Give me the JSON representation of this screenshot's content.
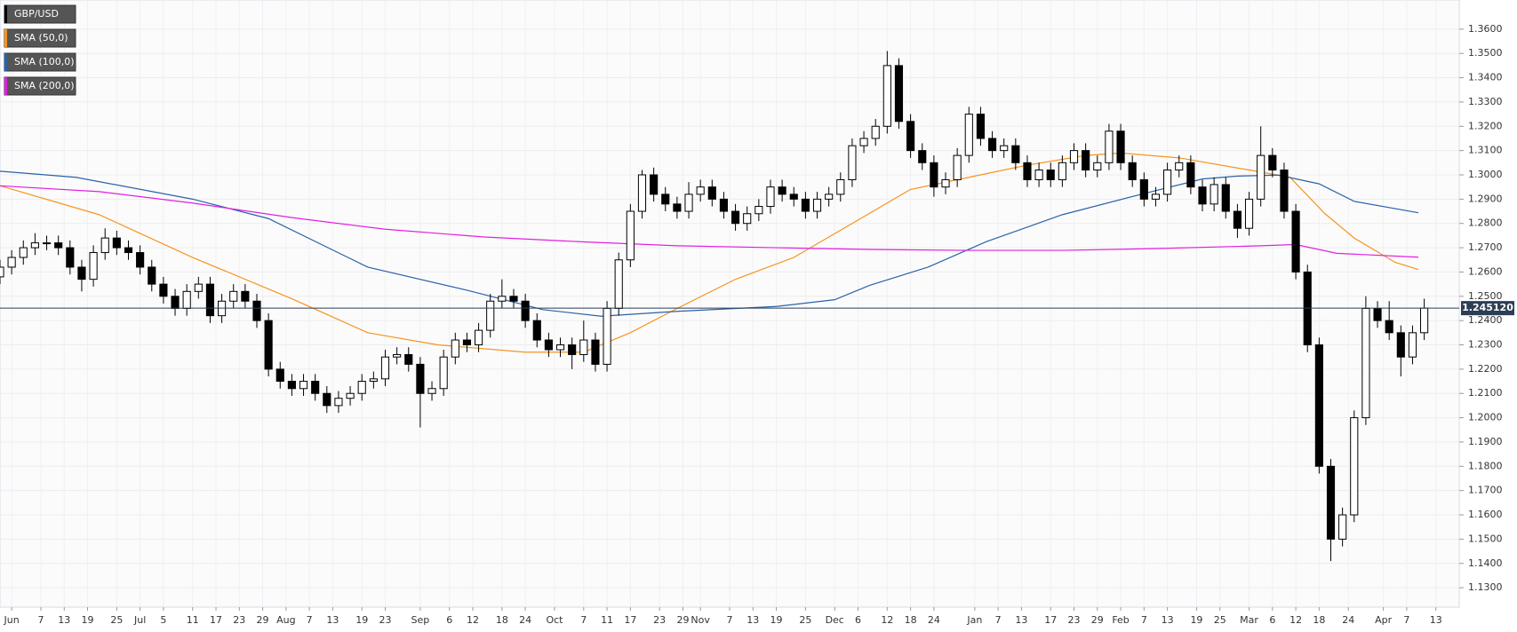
{
  "chart_data": {
    "type": "candlestick",
    "title": "GBP/USD",
    "up_color": "#ffffff",
    "down_color": "#000000",
    "xlim": [
      0,
      250
    ],
    "ylim": [
      1.122,
      1.372
    ],
    "grid": true,
    "xticks": [
      {
        "value": 2,
        "label": "Jun"
      },
      {
        "value": 7,
        "label": "7"
      },
      {
        "value": 11,
        "label": "13"
      },
      {
        "value": 15,
        "label": "19"
      },
      {
        "value": 20,
        "label": "25"
      },
      {
        "value": 24,
        "label": "Jul"
      },
      {
        "value": 28,
        "label": "5"
      },
      {
        "value": 33,
        "label": "11"
      },
      {
        "value": 37,
        "label": "17"
      },
      {
        "value": 41,
        "label": "23"
      },
      {
        "value": 45,
        "label": "29"
      },
      {
        "value": 49,
        "label": "Aug"
      },
      {
        "value": 53,
        "label": "7"
      },
      {
        "value": 57,
        "label": "13"
      },
      {
        "value": 62,
        "label": "19"
      },
      {
        "value": 66,
        "label": "23"
      },
      {
        "value": 72,
        "label": "Sep"
      },
      {
        "value": 77,
        "label": "6"
      },
      {
        "value": 81,
        "label": "12"
      },
      {
        "value": 86,
        "label": "18"
      },
      {
        "value": 90,
        "label": "24"
      },
      {
        "value": 95,
        "label": "Oct"
      },
      {
        "value": 100,
        "label": "7"
      },
      {
        "value": 104,
        "label": "11"
      },
      {
        "value": 108,
        "label": "17"
      },
      {
        "value": 113,
        "label": "23"
      },
      {
        "value": 117,
        "label": "29"
      },
      {
        "value": 120,
        "label": "Nov"
      },
      {
        "value": 125,
        "label": "7"
      },
      {
        "value": 129,
        "label": "13"
      },
      {
        "value": 133,
        "label": "19"
      },
      {
        "value": 138,
        "label": "25"
      },
      {
        "value": 143,
        "label": "Dec"
      },
      {
        "value": 147,
        "label": "6"
      },
      {
        "value": 152,
        "label": "12"
      },
      {
        "value": 156,
        "label": "18"
      },
      {
        "value": 160,
        "label": "24"
      },
      {
        "value": 167,
        "label": "Jan"
      },
      {
        "value": 171,
        "label": "7"
      },
      {
        "value": 175,
        "label": "13"
      },
      {
        "value": 180,
        "label": "17"
      },
      {
        "value": 184,
        "label": "23"
      },
      {
        "value": 188,
        "label": "29"
      },
      {
        "value": 192,
        "label": "Feb"
      },
      {
        "value": 196,
        "label": "7"
      },
      {
        "value": 200,
        "label": "13"
      },
      {
        "value": 205,
        "label": "19"
      },
      {
        "value": 209,
        "label": "25"
      },
      {
        "value": 214,
        "label": "Mar"
      },
      {
        "value": 218,
        "label": "6"
      },
      {
        "value": 222,
        "label": "12"
      },
      {
        "value": 226,
        "label": "18"
      },
      {
        "value": 231,
        "label": "24"
      },
      {
        "value": 237,
        "label": "Apr"
      },
      {
        "value": 241,
        "label": "7"
      },
      {
        "value": 246,
        "label": "13"
      }
    ],
    "yticks": [
      {
        "value": 1.13,
        "label": "1.1300"
      },
      {
        "value": 1.14,
        "label": "1.1400"
      },
      {
        "value": 1.15,
        "label": "1.1500"
      },
      {
        "value": 1.16,
        "label": "1.1600"
      },
      {
        "value": 1.17,
        "label": "1.1700"
      },
      {
        "value": 1.18,
        "label": "1.1800"
      },
      {
        "value": 1.19,
        "label": "1.1900"
      },
      {
        "value": 1.2,
        "label": "1.2000"
      },
      {
        "value": 1.21,
        "label": "1.2100"
      },
      {
        "value": 1.22,
        "label": "1.2200"
      },
      {
        "value": 1.23,
        "label": "1.2300"
      },
      {
        "value": 1.24,
        "label": "1.2400"
      },
      {
        "value": 1.25,
        "label": "1.2500"
      },
      {
        "value": 1.26,
        "label": "1.2600"
      },
      {
        "value": 1.27,
        "label": "1.2700"
      },
      {
        "value": 1.28,
        "label": "1.2800"
      },
      {
        "value": 1.29,
        "label": "1.2900"
      },
      {
        "value": 1.3,
        "label": "1.3000"
      },
      {
        "value": 1.31,
        "label": "1.3100"
      },
      {
        "value": 1.32,
        "label": "1.3200"
      },
      {
        "value": 1.33,
        "label": "1.3300"
      },
      {
        "value": 1.34,
        "label": "1.3400"
      },
      {
        "value": 1.35,
        "label": "1.3500"
      },
      {
        "value": 1.36,
        "label": "1.3600"
      }
    ],
    "last_price": {
      "value": 1.24512,
      "label": "1.245120"
    },
    "x": [
      0,
      2,
      4,
      6,
      8,
      10,
      12,
      14,
      16,
      18,
      20,
      22,
      24,
      26,
      28,
      30,
      32,
      34,
      36,
      38,
      40,
      42,
      44,
      46,
      48,
      50,
      52,
      54,
      56,
      58,
      60,
      62,
      64,
      66,
      68,
      70,
      72,
      74,
      76,
      78,
      80,
      82,
      84,
      86,
      88,
      90,
      92,
      94,
      96,
      98,
      100,
      102,
      104,
      106,
      108,
      110,
      112,
      114,
      116,
      118,
      120,
      122,
      124,
      126,
      128,
      130,
      132,
      134,
      136,
      138,
      140,
      142,
      144,
      146,
      148,
      150,
      152,
      154,
      156,
      158,
      160,
      162,
      164,
      166,
      168,
      170,
      172,
      174,
      176,
      178,
      180,
      182,
      184,
      186,
      188,
      190,
      192,
      194,
      196,
      198,
      200,
      202,
      204,
      206,
      208,
      210,
      212,
      214,
      216,
      218,
      220,
      222,
      224,
      226,
      228,
      230,
      232,
      234,
      236,
      238,
      240,
      242,
      244
    ],
    "candles": [
      [
        1.258,
        1.265,
        1.255,
        1.262
      ],
      [
        1.262,
        1.269,
        1.259,
        1.266
      ],
      [
        1.266,
        1.273,
        1.263,
        1.27
      ],
      [
        1.27,
        1.276,
        1.267,
        1.272
      ],
      [
        1.272,
        1.275,
        1.269,
        1.272
      ],
      [
        1.272,
        1.275,
        1.267,
        1.27
      ],
      [
        1.27,
        1.273,
        1.259,
        1.262
      ],
      [
        1.262,
        1.265,
        1.252,
        1.257
      ],
      [
        1.257,
        1.271,
        1.254,
        1.268
      ],
      [
        1.268,
        1.278,
        1.265,
        1.274
      ],
      [
        1.274,
        1.277,
        1.267,
        1.27
      ],
      [
        1.27,
        1.273,
        1.265,
        1.268
      ],
      [
        1.268,
        1.271,
        1.259,
        1.262
      ],
      [
        1.262,
        1.265,
        1.252,
        1.255
      ],
      [
        1.255,
        1.258,
        1.247,
        1.25
      ],
      [
        1.25,
        1.253,
        1.242,
        1.245
      ],
      [
        1.245,
        1.255,
        1.242,
        1.252
      ],
      [
        1.252,
        1.258,
        1.249,
        1.255
      ],
      [
        1.255,
        1.258,
        1.239,
        1.242
      ],
      [
        1.242,
        1.251,
        1.239,
        1.248
      ],
      [
        1.248,
        1.255,
        1.245,
        1.252
      ],
      [
        1.252,
        1.255,
        1.245,
        1.248
      ],
      [
        1.248,
        1.251,
        1.237,
        1.24
      ],
      [
        1.24,
        1.243,
        1.217,
        1.22
      ],
      [
        1.22,
        1.223,
        1.212,
        1.215
      ],
      [
        1.215,
        1.218,
        1.209,
        1.212
      ],
      [
        1.212,
        1.218,
        1.209,
        1.215
      ],
      [
        1.215,
        1.218,
        1.207,
        1.21
      ],
      [
        1.21,
        1.213,
        1.202,
        1.205
      ],
      [
        1.205,
        1.211,
        1.202,
        1.208
      ],
      [
        1.208,
        1.213,
        1.205,
        1.21
      ],
      [
        1.21,
        1.218,
        1.207,
        1.215
      ],
      [
        1.215,
        1.219,
        1.212,
        1.216
      ],
      [
        1.216,
        1.228,
        1.213,
        1.225
      ],
      [
        1.225,
        1.229,
        1.222,
        1.226
      ],
      [
        1.226,
        1.229,
        1.219,
        1.222
      ],
      [
        1.222,
        1.225,
        1.196,
        1.21
      ],
      [
        1.21,
        1.215,
        1.207,
        1.212
      ],
      [
        1.212,
        1.228,
        1.209,
        1.225
      ],
      [
        1.225,
        1.235,
        1.222,
        1.232
      ],
      [
        1.232,
        1.235,
        1.227,
        1.23
      ],
      [
        1.23,
        1.239,
        1.227,
        1.236
      ],
      [
        1.236,
        1.251,
        1.233,
        1.248
      ],
      [
        1.248,
        1.257,
        1.245,
        1.25
      ],
      [
        1.25,
        1.253,
        1.245,
        1.248
      ],
      [
        1.248,
        1.251,
        1.237,
        1.24
      ],
      [
        1.24,
        1.243,
        1.229,
        1.232
      ],
      [
        1.232,
        1.235,
        1.225,
        1.228
      ],
      [
        1.228,
        1.233,
        1.225,
        1.23
      ],
      [
        1.23,
        1.233,
        1.22,
        1.226
      ],
      [
        1.226,
        1.24,
        1.223,
        1.232
      ],
      [
        1.232,
        1.235,
        1.219,
        1.222
      ],
      [
        1.222,
        1.248,
        1.219,
        1.245
      ],
      [
        1.245,
        1.268,
        1.242,
        1.265
      ],
      [
        1.265,
        1.288,
        1.262,
        1.285
      ],
      [
        1.285,
        1.302,
        1.282,
        1.3
      ],
      [
        1.3,
        1.303,
        1.289,
        1.292
      ],
      [
        1.292,
        1.295,
        1.285,
        1.288
      ],
      [
        1.288,
        1.291,
        1.282,
        1.285
      ],
      [
        1.285,
        1.297,
        1.282,
        1.292
      ],
      [
        1.292,
        1.298,
        1.289,
        1.295
      ],
      [
        1.295,
        1.298,
        1.287,
        1.29
      ],
      [
        1.29,
        1.293,
        1.282,
        1.285
      ],
      [
        1.285,
        1.288,
        1.277,
        1.28
      ],
      [
        1.28,
        1.287,
        1.277,
        1.284
      ],
      [
        1.284,
        1.29,
        1.281,
        1.287
      ],
      [
        1.287,
        1.298,
        1.284,
        1.295
      ],
      [
        1.295,
        1.298,
        1.289,
        1.292
      ],
      [
        1.292,
        1.295,
        1.287,
        1.29
      ],
      [
        1.29,
        1.293,
        1.282,
        1.285
      ],
      [
        1.285,
        1.293,
        1.282,
        1.29
      ],
      [
        1.29,
        1.295,
        1.287,
        1.292
      ],
      [
        1.292,
        1.301,
        1.289,
        1.298
      ],
      [
        1.298,
        1.315,
        1.295,
        1.312
      ],
      [
        1.312,
        1.318,
        1.309,
        1.315
      ],
      [
        1.315,
        1.323,
        1.312,
        1.32
      ],
      [
        1.32,
        1.351,
        1.317,
        1.345
      ],
      [
        1.345,
        1.348,
        1.319,
        1.322
      ],
      [
        1.322,
        1.325,
        1.307,
        1.31
      ],
      [
        1.31,
        1.313,
        1.302,
        1.305
      ],
      [
        1.305,
        1.308,
        1.291,
        1.295
      ],
      [
        1.295,
        1.301,
        1.292,
        1.298
      ],
      [
        1.298,
        1.311,
        1.295,
        1.308
      ],
      [
        1.308,
        1.328,
        1.305,
        1.325
      ],
      [
        1.325,
        1.328,
        1.312,
        1.315
      ],
      [
        1.315,
        1.318,
        1.307,
        1.31
      ],
      [
        1.31,
        1.315,
        1.307,
        1.312
      ],
      [
        1.312,
        1.315,
        1.302,
        1.305
      ],
      [
        1.305,
        1.308,
        1.295,
        1.298
      ],
      [
        1.298,
        1.305,
        1.295,
        1.302
      ],
      [
        1.302,
        1.305,
        1.295,
        1.298
      ],
      [
        1.298,
        1.308,
        1.295,
        1.305
      ],
      [
        1.305,
        1.313,
        1.302,
        1.31
      ],
      [
        1.31,
        1.313,
        1.299,
        1.302
      ],
      [
        1.302,
        1.308,
        1.299,
        1.305
      ],
      [
        1.305,
        1.321,
        1.302,
        1.318
      ],
      [
        1.318,
        1.321,
        1.302,
        1.305
      ],
      [
        1.305,
        1.308,
        1.295,
        1.298
      ],
      [
        1.298,
        1.301,
        1.287,
        1.29
      ],
      [
        1.29,
        1.295,
        1.287,
        1.292
      ],
      [
        1.292,
        1.305,
        1.289,
        1.302
      ],
      [
        1.302,
        1.308,
        1.299,
        1.305
      ],
      [
        1.305,
        1.308,
        1.292,
        1.295
      ],
      [
        1.295,
        1.298,
        1.285,
        1.288
      ],
      [
        1.288,
        1.299,
        1.285,
        1.296
      ],
      [
        1.296,
        1.299,
        1.282,
        1.285
      ],
      [
        1.285,
        1.288,
        1.274,
        1.278
      ],
      [
        1.278,
        1.293,
        1.275,
        1.29
      ],
      [
        1.29,
        1.32,
        1.287,
        1.308
      ],
      [
        1.308,
        1.311,
        1.299,
        1.302
      ],
      [
        1.302,
        1.305,
        1.282,
        1.285
      ],
      [
        1.285,
        1.288,
        1.257,
        1.26
      ],
      [
        1.26,
        1.263,
        1.227,
        1.23
      ],
      [
        1.23,
        1.233,
        1.177,
        1.18
      ],
      [
        1.18,
        1.183,
        1.141,
        1.15
      ],
      [
        1.15,
        1.163,
        1.147,
        1.16
      ],
      [
        1.16,
        1.203,
        1.157,
        1.2
      ],
      [
        1.2,
        1.25,
        1.197,
        1.245
      ],
      [
        1.245,
        1.248,
        1.237,
        1.24
      ],
      [
        1.24,
        1.248,
        1.232,
        1.235
      ],
      [
        1.235,
        1.238,
        1.217,
        1.225
      ],
      [
        1.225,
        1.238,
        1.222,
        1.235
      ],
      [
        1.235,
        1.249,
        1.232,
        1.24512
      ]
    ],
    "series": [
      {
        "name": "SMA (50,0)",
        "color": "#f7931e",
        "x": [
          0,
          17,
          33,
          50,
          63,
          75,
          90,
          100,
          108,
          116,
          126,
          136,
          146,
          156,
          166,
          176,
          186,
          192,
          202,
          214,
          221,
          227,
          232,
          239,
          243
        ],
        "values": [
          1.2955,
          1.2836,
          1.266,
          1.249,
          1.235,
          1.23,
          1.227,
          1.227,
          1.235,
          1.245,
          1.257,
          1.266,
          1.28,
          1.294,
          1.299,
          1.304,
          1.308,
          1.309,
          1.307,
          1.302,
          1.299,
          1.284,
          1.274,
          1.264,
          1.261
        ]
      },
      {
        "name": "SMA (100,0)",
        "color": "#2962a8",
        "x": [
          0,
          13,
          33,
          46,
          63,
          80,
          93,
          103,
          116,
          133,
          143,
          149,
          159,
          169,
          182,
          196,
          206,
          212,
          219,
          226,
          232,
          243
        ],
        "values": [
          1.3015,
          1.299,
          1.29,
          1.282,
          1.262,
          1.2525,
          1.2445,
          1.2418,
          1.2438,
          1.2458,
          1.2486,
          1.2545,
          1.262,
          1.2725,
          1.2836,
          1.2923,
          1.2983,
          1.2995,
          1.2999,
          1.2963,
          1.2891,
          1.2844
        ]
      },
      {
        "name": "SMA (200,0)",
        "color": "#e020e0",
        "x": [
          0,
          17,
          33,
          50,
          66,
          83,
          100,
          116,
          133,
          149,
          166,
          182,
          199,
          216,
          222,
          229,
          243
        ],
        "values": [
          1.2955,
          1.2931,
          1.2884,
          1.2824,
          1.2776,
          1.2744,
          1.2724,
          1.2708,
          1.27,
          1.2693,
          1.2689,
          1.2689,
          1.2697,
          1.2708,
          1.2713,
          1.2677,
          1.2661
        ]
      }
    ]
  }
}
